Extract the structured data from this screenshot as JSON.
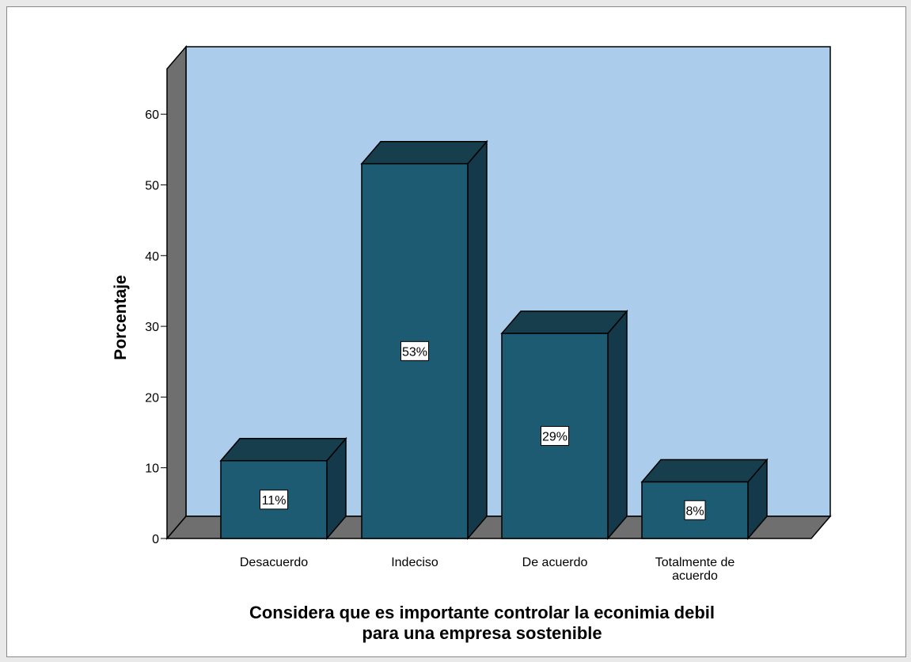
{
  "chart_data": {
    "type": "bar",
    "categories": [
      "Desacuerdo",
      "Indeciso",
      "De acuerdo",
      [
        "Totalmente de",
        "acuerdo"
      ]
    ],
    "values": [
      11,
      53,
      29,
      8
    ],
    "data_labels": [
      "11%",
      "53%",
      "29%",
      "8%"
    ],
    "ylabel": "Porcentaje",
    "xlabel": [
      "Considera que es importante controlar la econimia debil",
      "para una empresa sostenible"
    ],
    "ylim": [
      0,
      65
    ],
    "yticks": [
      0,
      10,
      20,
      30,
      40,
      50,
      60
    ],
    "grid": false,
    "legend": "none",
    "colors": {
      "bar_front": "#1c5b72",
      "bar_top": "#173e4c",
      "bar_side": "#14394a",
      "back_wall": "#abcdeb",
      "side_wall": "#6f6f6f",
      "floor": "#6f6f6f"
    }
  }
}
